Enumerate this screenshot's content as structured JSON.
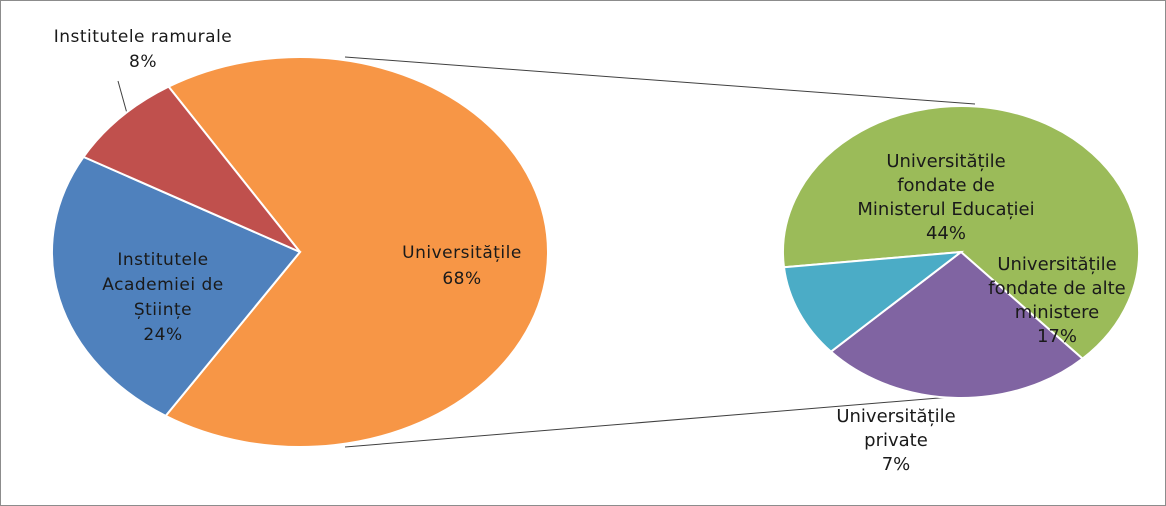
{
  "chart_data": [
    {
      "type": "pie",
      "slices": [
        {
          "label": "Universitățile",
          "value": 68,
          "value_label": "68%",
          "color": "#f79646"
        },
        {
          "label": "Institutele Academiei de Științe",
          "label_lines": [
            "Institutele",
            "Academiei de",
            "Științe"
          ],
          "value": 24,
          "value_label": "24%",
          "color": "#4f81bd"
        },
        {
          "label": "Institutele ramurale",
          "value": 8,
          "value_label": "8%",
          "color": "#c0504d"
        }
      ]
    },
    {
      "type": "pie",
      "exploded_from": "Universitățile",
      "slices": [
        {
          "label": "Universitățile fondate de Ministerul Educației",
          "label_lines": [
            "Universitățile",
            "fondate de",
            "Ministerul Educației"
          ],
          "value": 44,
          "value_label": "44%",
          "color": "#9bbb59"
        },
        {
          "label": "Universitățile fondate de alte ministere",
          "label_lines": [
            "Universitățile",
            "fondate de alte",
            "ministere"
          ],
          "value": 17,
          "value_label": "17%",
          "color": "#8064a2"
        },
        {
          "label": "Universitățile private",
          "label_lines": [
            "Universitățile",
            "private"
          ],
          "value": 7,
          "value_label": "7%",
          "color": "#4bacc6"
        }
      ]
    }
  ]
}
